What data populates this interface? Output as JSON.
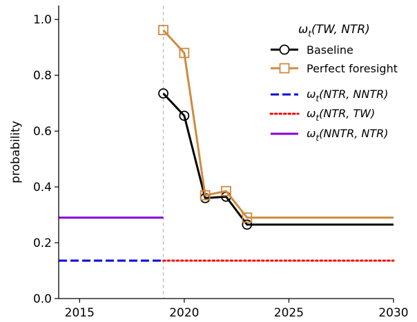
{
  "chart_data": {
    "type": "line",
    "title": "",
    "xlabel": "",
    "ylabel": "probability",
    "xlim": [
      2014,
      2030
    ],
    "ylim": [
      0.0,
      1.05
    ],
    "xticks": [
      2015,
      2020,
      2025,
      2030
    ],
    "yticks": [
      0.0,
      0.2,
      0.4,
      0.6,
      0.8,
      1.0
    ],
    "xtick_labels": [
      "2015",
      "2020",
      "2025",
      "2030"
    ],
    "ytick_labels": [
      "0.0",
      "0.2",
      "0.4",
      "0.6",
      "0.8",
      "1.0"
    ],
    "grid": false,
    "legend_position": "top-right",
    "legend_title": {
      "base": "ω",
      "sub": "t",
      "args": "(TW, NTR)"
    },
    "vline": {
      "x": 2019,
      "color": "#bbbbbb",
      "style": "dashed"
    },
    "series": [
      {
        "name": "Baseline",
        "color": "#000000",
        "style": "solid",
        "marker": "circle",
        "x": [
          2019,
          2020,
          2021,
          2022,
          2023,
          2030
        ],
        "y": [
          0.735,
          0.655,
          0.36,
          0.365,
          0.265,
          0.265
        ],
        "marker_count": 5
      },
      {
        "name": "Perfect foresight",
        "color": "#d0893e",
        "style": "solid",
        "marker": "square",
        "x": [
          2019,
          2020,
          2021,
          2022,
          2023,
          2030
        ],
        "y": [
          0.962,
          0.88,
          0.37,
          0.385,
          0.29,
          0.29
        ],
        "marker_count": 5
      },
      {
        "name_base": "ω",
        "name_sub": "t",
        "name_args": "(NTR, NNTR)",
        "color": "#0000dd",
        "style": "dashed",
        "marker": "none",
        "x": [
          2014,
          2019
        ],
        "y": [
          0.136,
          0.136
        ]
      },
      {
        "name_base": "ω",
        "name_sub": "t",
        "name_args": "(NTR, TW)",
        "color": "#ff0000",
        "style": "dotted",
        "marker": "none",
        "x": [
          2019,
          2030
        ],
        "y": [
          0.136,
          0.136
        ]
      },
      {
        "name_base": "ω",
        "name_sub": "t",
        "name_args": "(NNTR, NTR)",
        "color": "#8a00d4",
        "style": "solid",
        "marker": "none",
        "x": [
          2014,
          2019
        ],
        "y": [
          0.29,
          0.29
        ]
      }
    ]
  }
}
